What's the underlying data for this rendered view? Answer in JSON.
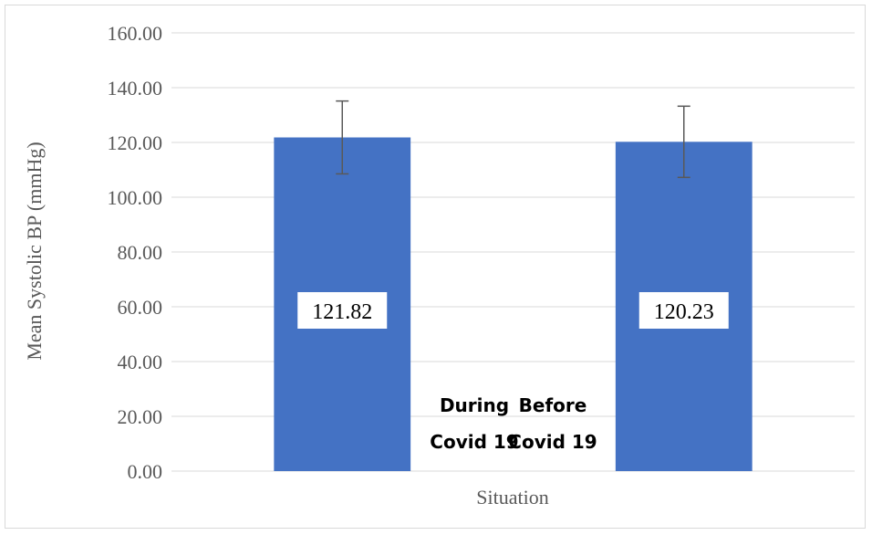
{
  "chart_data": {
    "type": "bar",
    "categories": [
      "During\nCovid 19",
      "Before\nCovid 19"
    ],
    "category_lines": [
      [
        "During",
        "Covid 19"
      ],
      [
        "Before",
        "Covid 19"
      ]
    ],
    "values": [
      121.82,
      120.23
    ],
    "error_bars": [
      13.3,
      13.0
    ],
    "data_labels": [
      "121.82",
      "120.23"
    ],
    "title": "",
    "xlabel": "Situation",
    "ylabel": "Mean Systolic BP (mmHg)",
    "ylim": [
      0,
      160
    ],
    "yticks": [
      "0.00",
      "20.00",
      "40.00",
      "60.00",
      "80.00",
      "100.00",
      "120.00",
      "140.00",
      "160.00"
    ],
    "grid": true,
    "legend": "none",
    "colors": {
      "bar": "#4472c4",
      "grid": "#d9d9d9",
      "error_bar": "#595959",
      "label_box": "#ffffff"
    }
  }
}
